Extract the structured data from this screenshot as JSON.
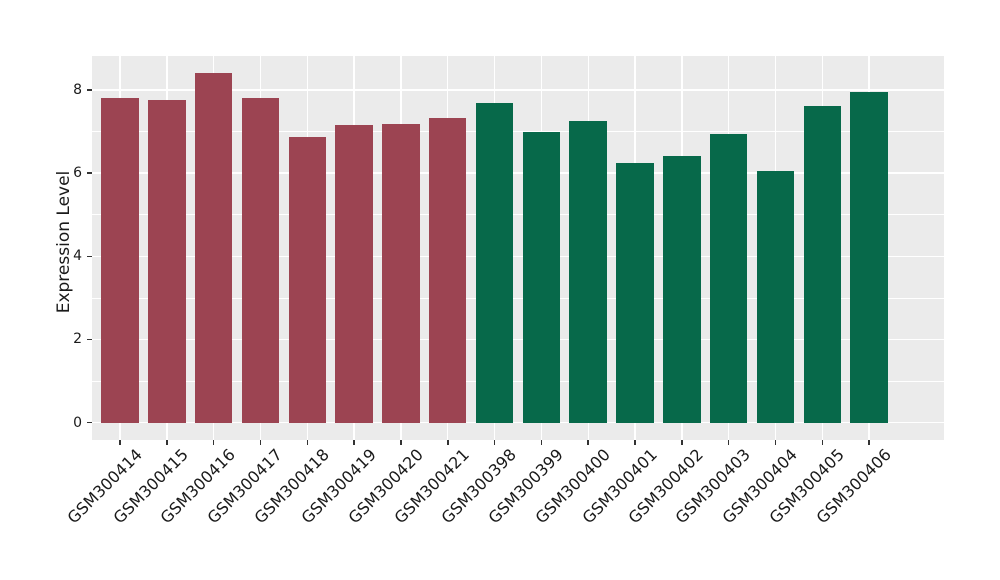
{
  "figure": {
    "background": "#FFFFFF",
    "panel_background": "#EBEBEB",
    "grid_color": "#FFFFFF",
    "tick_color": "#333333",
    "text_color": "#1A1A1A",
    "red_bar_color": "#9C4452",
    "green_bar_color": "#07694A"
  },
  "chart_data": {
    "type": "bar",
    "title": "",
    "xlabel": "",
    "ylabel": "Expression Level",
    "ylim": [
      -0.42,
      8.82
    ],
    "yticks": [
      0,
      2,
      4,
      6,
      8
    ],
    "ytick_labels": [
      "0",
      "2",
      "4",
      "6",
      "8"
    ],
    "minor_gridlines": [
      1,
      3,
      5,
      7
    ],
    "grid": "white major+minor horizontal and major vertical lines on gray panel",
    "legend": "none",
    "x_tick_rotation_deg": 45,
    "categories": [
      "GSM300414",
      "GSM300415",
      "GSM300416",
      "GSM300417",
      "GSM300418",
      "GSM300419",
      "GSM300420",
      "GSM300421",
      "GSM300398",
      "GSM300399",
      "GSM300400",
      "GSM300401",
      "GSM300402",
      "GSM300403",
      "GSM300404",
      "GSM300405",
      "GSM300406"
    ],
    "values": [
      7.8,
      7.75,
      8.4,
      7.8,
      6.88,
      7.16,
      7.19,
      7.32,
      7.68,
      6.98,
      7.25,
      6.24,
      6.42,
      6.95,
      6.05,
      7.62,
      7.96
    ],
    "bar_colors": [
      "#9C4452",
      "#9C4452",
      "#9C4452",
      "#9C4452",
      "#9C4452",
      "#9C4452",
      "#9C4452",
      "#9C4452",
      "#07694A",
      "#07694A",
      "#07694A",
      "#07694A",
      "#07694A",
      "#07694A",
      "#07694A",
      "#07694A",
      "#07694A"
    ]
  }
}
